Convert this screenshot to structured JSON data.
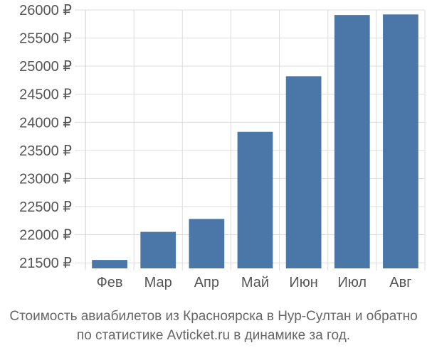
{
  "chart_data": {
    "type": "bar",
    "categories": [
      "Фев",
      "Мар",
      "Апр",
      "Май",
      "Июн",
      "Июл",
      "Авг"
    ],
    "values": [
      21550,
      22050,
      22280,
      23830,
      24820,
      25910,
      25920
    ],
    "ylim": [
      21400,
      26000
    ],
    "yticks": [
      21500,
      22000,
      22500,
      23000,
      23500,
      24000,
      24500,
      25000,
      25500,
      26000
    ],
    "ytick_labels": [
      "21500 ₽",
      "22000 ₽",
      "22500 ₽",
      "23000 ₽",
      "23500 ₽",
      "24000 ₽",
      "24500 ₽",
      "25000 ₽",
      "25500 ₽",
      "26000 ₽"
    ],
    "grid": true,
    "bar_color": "#4a76a8"
  },
  "caption": {
    "line1": "Стоимость авиабилетов из Красноярска в Нур-Султан и обратно",
    "line2": "по статистике Avticket.ru в динамике за год."
  }
}
